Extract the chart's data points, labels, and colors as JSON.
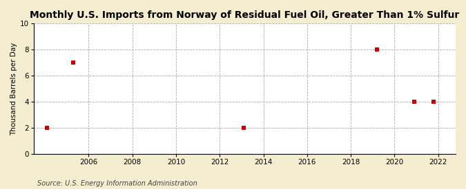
{
  "title": "Monthly U.S. Imports from Norway of Residual Fuel Oil, Greater Than 1% Sulfur",
  "ylabel": "Thousand Barrels per Day",
  "source": "Source: U.S. Energy Information Administration",
  "background_color": "#f5edcf",
  "plot_background_color": "#ffffff",
  "data_x": [
    2004.1,
    2005.3,
    2013.1,
    2019.2,
    2020.9,
    2021.8
  ],
  "data_y": [
    2,
    7,
    2,
    8,
    4,
    4
  ],
  "marker_color": "#cc0000",
  "marker_size": 4,
  "xlim": [
    2003.5,
    2022.8
  ],
  "ylim": [
    0,
    10
  ],
  "xticks": [
    2006,
    2008,
    2010,
    2012,
    2014,
    2016,
    2018,
    2020,
    2022
  ],
  "yticks": [
    0,
    2,
    4,
    6,
    8,
    10
  ],
  "grid_color": "#aaaaaa",
  "grid_style": "--",
  "title_fontsize": 10,
  "label_fontsize": 7.5,
  "tick_fontsize": 7.5,
  "source_fontsize": 7
}
